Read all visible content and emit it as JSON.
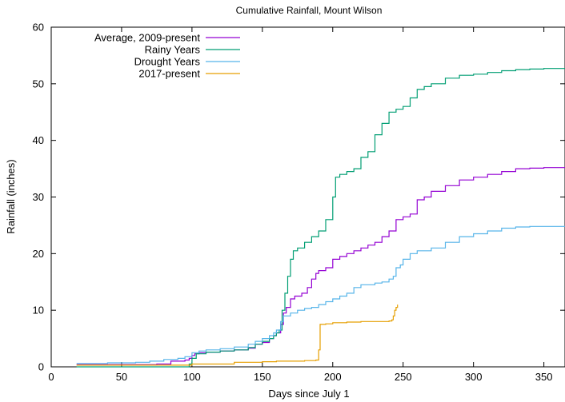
{
  "chart_data": {
    "type": "line",
    "title": "Cumulative Rainfall, Mount Wilson",
    "xlabel": "Days since July 1",
    "ylabel": "Rainfall (inches)",
    "xlim": [
      0,
      365
    ],
    "ylim": [
      0,
      60
    ],
    "xticks": [
      0,
      50,
      100,
      150,
      200,
      250,
      300,
      350
    ],
    "yticks": [
      0,
      10,
      20,
      30,
      40,
      50,
      60
    ],
    "grid": false,
    "legend": "top-left",
    "series": [
      {
        "name": "Average, 2009-present",
        "color": "#9400d3",
        "x": [
          18,
          50,
          75,
          85,
          95,
          98,
          100,
          102,
          105,
          110,
          120,
          130,
          140,
          145,
          150,
          155,
          158,
          160,
          163,
          165,
          167,
          170,
          173,
          178,
          182,
          185,
          188,
          190,
          195,
          200,
          205,
          210,
          215,
          220,
          225,
          230,
          235,
          240,
          245,
          250,
          255,
          260,
          265,
          270,
          280,
          290,
          300,
          310,
          320,
          330,
          340,
          350,
          365
        ],
        "y": [
          0.4,
          0.4,
          0.5,
          1.0,
          1.2,
          1.5,
          2.0,
          2.3,
          2.5,
          2.6,
          2.8,
          3.0,
          3.3,
          4.0,
          4.3,
          5.0,
          5.5,
          6.0,
          7.5,
          9.5,
          10.5,
          12.0,
          12.5,
          13.0,
          14.0,
          15.5,
          16.5,
          17.0,
          17.5,
          19.0,
          19.5,
          20.0,
          20.5,
          21.0,
          21.5,
          22.0,
          23.0,
          24.0,
          26.0,
          26.5,
          27.0,
          29.5,
          30.0,
          31.0,
          32.0,
          33.0,
          33.5,
          34.0,
          34.5,
          35.0,
          35.1,
          35.2,
          35.3
        ]
      },
      {
        "name": "Rainy Years",
        "color": "#009e73",
        "x": [
          18,
          90,
          98,
          100,
          103,
          110,
          120,
          130,
          140,
          145,
          150,
          155,
          158,
          160,
          162,
          164,
          166,
          168,
          170,
          172,
          175,
          180,
          185,
          190,
          195,
          200,
          202,
          205,
          210,
          215,
          220,
          225,
          230,
          235,
          240,
          245,
          250,
          255,
          260,
          265,
          270,
          280,
          290,
          300,
          310,
          320,
          330,
          340,
          350,
          365
        ],
        "y": [
          0,
          0,
          0.5,
          1.5,
          2.3,
          2.6,
          2.8,
          3.0,
          3.4,
          4.0,
          4.5,
          5.0,
          5.5,
          6.0,
          6.5,
          10.0,
          13.0,
          16.0,
          19.0,
          20.5,
          21.0,
          22.0,
          23.0,
          24.0,
          26.0,
          30.0,
          33.5,
          34.0,
          34.5,
          35.0,
          37.0,
          38.0,
          41.0,
          43.0,
          45.0,
          45.5,
          46.0,
          47.5,
          49.0,
          49.5,
          50.0,
          51.0,
          51.5,
          51.7,
          52.0,
          52.3,
          52.5,
          52.6,
          52.7,
          52.8
        ]
      },
      {
        "name": "Drought Years",
        "color": "#56b4e9",
        "x": [
          18,
          40,
          60,
          70,
          80,
          90,
          95,
          100,
          105,
          110,
          120,
          130,
          140,
          145,
          150,
          155,
          158,
          160,
          163,
          165,
          170,
          175,
          180,
          185,
          190,
          195,
          200,
          205,
          210,
          215,
          220,
          230,
          235,
          240,
          243,
          245,
          248,
          250,
          255,
          260,
          270,
          280,
          290,
          300,
          310,
          320,
          330,
          340,
          350,
          365
        ],
        "y": [
          0.6,
          0.7,
          0.8,
          1.0,
          1.3,
          1.5,
          1.8,
          2.5,
          2.8,
          3.0,
          3.2,
          3.5,
          4.0,
          4.5,
          5.0,
          5.5,
          6.0,
          6.5,
          8.0,
          9.0,
          9.5,
          10.0,
          10.3,
          10.5,
          11.0,
          11.5,
          12.0,
          12.5,
          13.0,
          14.0,
          14.5,
          14.8,
          15.0,
          15.5,
          16.0,
          17.5,
          18.0,
          19.0,
          20.0,
          20.5,
          21.0,
          22.0,
          23.0,
          23.5,
          24.0,
          24.5,
          24.7,
          24.8,
          24.8,
          24.8
        ]
      },
      {
        "name": "2017-present",
        "color": "#e69f00",
        "x": [
          18,
          80,
          100,
          130,
          150,
          160,
          180,
          188,
          190,
          191,
          195,
          200,
          210,
          220,
          230,
          240,
          242,
          243,
          244,
          245,
          246
        ],
        "y": [
          0.3,
          0.3,
          0.5,
          0.8,
          0.9,
          1.0,
          1.1,
          1.2,
          3.0,
          7.5,
          7.6,
          7.8,
          7.9,
          8.0,
          8.0,
          8.1,
          8.3,
          9.0,
          10.0,
          10.5,
          11.0
        ]
      }
    ]
  }
}
